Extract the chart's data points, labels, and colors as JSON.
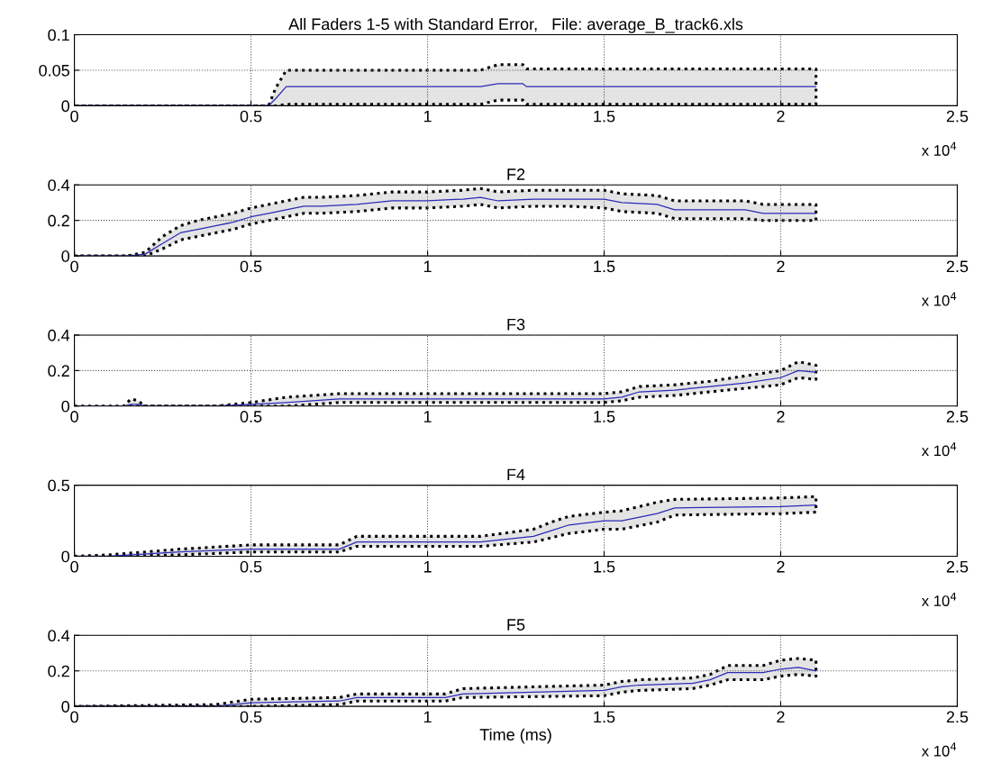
{
  "chart_data": [
    {
      "type": "line",
      "title": "All Faders 1-5 with Standard Error,   File: average_B_track6.xls",
      "xlim": [
        0,
        2.5
      ],
      "xticks": [
        0,
        0.5,
        1,
        1.5,
        2,
        2.5
      ],
      "ylim": [
        0,
        0.1
      ],
      "yticks": [
        0,
        0.05,
        0.1
      ],
      "grid": true,
      "annotations": [
        "x 10$^{4}$"
      ],
      "series": [
        {
          "color": "#2b2bb8",
          "x": [
            0,
            0.55,
            0.57,
            0.6,
            1.15,
            1.2,
            1.27,
            1.28,
            2.1
          ],
          "values": [
            0,
            0,
            0.01,
            0.027,
            0.027,
            0.031,
            0.031,
            0.027,
            0.027
          ],
          "upper": [
            0,
            0,
            0.025,
            0.05,
            0.05,
            0.058,
            0.058,
            0.052,
            0.052
          ],
          "lower": [
            0,
            0,
            0,
            0.002,
            0.002,
            0.008,
            0.008,
            0.002,
            0.002
          ]
        }
      ]
    },
    {
      "type": "line",
      "title": "F2",
      "xlim": [
        0,
        2.5
      ],
      "xticks": [
        0,
        0.5,
        1,
        1.5,
        2,
        2.5
      ],
      "ylim": [
        0,
        0.4
      ],
      "yticks": [
        0,
        0.2,
        0.4
      ],
      "grid": true,
      "annotations": [
        "x 10$^{4}$"
      ],
      "series": [
        {
          "color": "#2b2bb8",
          "x": [
            0,
            0.15,
            0.2,
            0.25,
            0.3,
            0.35,
            0.4,
            0.45,
            0.5,
            0.55,
            0.6,
            0.65,
            0.7,
            0.8,
            0.9,
            1,
            1.1,
            1.15,
            1.2,
            1.3,
            1.4,
            1.5,
            1.55,
            1.65,
            1.7,
            1.8,
            1.9,
            1.95,
            2,
            2.1
          ],
          "values": [
            0,
            0,
            0.01,
            0.07,
            0.13,
            0.15,
            0.17,
            0.19,
            0.22,
            0.24,
            0.26,
            0.28,
            0.28,
            0.29,
            0.31,
            0.31,
            0.32,
            0.33,
            0.31,
            0.32,
            0.32,
            0.32,
            0.3,
            0.29,
            0.26,
            0.26,
            0.26,
            0.24,
            0.24,
            0.24
          ],
          "upper": [
            0,
            0,
            0.02,
            0.11,
            0.17,
            0.2,
            0.22,
            0.24,
            0.27,
            0.29,
            0.31,
            0.33,
            0.33,
            0.34,
            0.36,
            0.36,
            0.37,
            0.38,
            0.36,
            0.37,
            0.37,
            0.37,
            0.35,
            0.34,
            0.31,
            0.31,
            0.31,
            0.29,
            0.29,
            0.29
          ],
          "lower": [
            0,
            0,
            0,
            0.04,
            0.09,
            0.11,
            0.13,
            0.15,
            0.18,
            0.2,
            0.22,
            0.24,
            0.24,
            0.25,
            0.27,
            0.27,
            0.28,
            0.29,
            0.27,
            0.28,
            0.28,
            0.27,
            0.25,
            0.24,
            0.21,
            0.21,
            0.21,
            0.2,
            0.2,
            0.2
          ]
        }
      ]
    },
    {
      "type": "line",
      "title": "F3",
      "xlim": [
        0,
        2.5
      ],
      "xticks": [
        0,
        0.5,
        1,
        1.5,
        2,
        2.5
      ],
      "ylim": [
        0,
        0.4
      ],
      "yticks": [
        0,
        0.2,
        0.4
      ],
      "grid": true,
      "annotations": [
        "x 10$^{4}$"
      ],
      "series": [
        {
          "color": "#2b2bb8",
          "x": [
            0,
            0.14,
            0.16,
            0.18,
            0.2,
            0.4,
            0.5,
            0.6,
            0.75,
            1,
            1.5,
            1.55,
            1.6,
            1.7,
            1.8,
            1.9,
            2,
            2.05,
            2.1
          ],
          "values": [
            0,
            0,
            0.01,
            0.01,
            0,
            0,
            0.01,
            0.02,
            0.04,
            0.04,
            0.04,
            0.05,
            0.08,
            0.09,
            0.11,
            0.13,
            0.16,
            0.2,
            0.19
          ],
          "upper": [
            0,
            0,
            0.04,
            0.03,
            0,
            0,
            0.02,
            0.05,
            0.07,
            0.07,
            0.07,
            0.08,
            0.11,
            0.12,
            0.14,
            0.17,
            0.2,
            0.25,
            0.23
          ],
          "lower": [
            0,
            0,
            0,
            0,
            0,
            0,
            0,
            0,
            0.02,
            0.02,
            0.02,
            0.03,
            0.05,
            0.06,
            0.08,
            0.1,
            0.12,
            0.16,
            0.15
          ]
        }
      ]
    },
    {
      "type": "line",
      "title": "F4",
      "xlim": [
        0,
        2.5
      ],
      "xticks": [
        0,
        0.5,
        1,
        1.5,
        2,
        2.5
      ],
      "ylim": [
        0,
        0.5
      ],
      "yticks": [
        0,
        0.5
      ],
      "grid": true,
      "annotations": [
        "x 10$^{4}$"
      ],
      "series": [
        {
          "color": "#2b2bb8",
          "x": [
            0,
            0.1,
            0.3,
            0.5,
            0.75,
            0.8,
            1,
            1.15,
            1.3,
            1.35,
            1.4,
            1.5,
            1.55,
            1.65,
            1.7,
            2,
            2.1
          ],
          "values": [
            0,
            0,
            0.03,
            0.05,
            0.05,
            0.1,
            0.1,
            0.1,
            0.14,
            0.18,
            0.22,
            0.25,
            0.25,
            0.3,
            0.34,
            0.35,
            0.36
          ],
          "upper": [
            0,
            0.01,
            0.05,
            0.08,
            0.08,
            0.14,
            0.14,
            0.14,
            0.19,
            0.24,
            0.28,
            0.31,
            0.32,
            0.38,
            0.4,
            0.41,
            0.42
          ],
          "lower": [
            0,
            0,
            0.01,
            0.03,
            0.03,
            0.07,
            0.07,
            0.07,
            0.1,
            0.13,
            0.16,
            0.19,
            0.19,
            0.24,
            0.29,
            0.3,
            0.31
          ]
        }
      ]
    },
    {
      "type": "line",
      "title": "F5",
      "xlabel": "Time (ms)",
      "xlim": [
        0,
        2.5
      ],
      "xticks": [
        0,
        0.5,
        1,
        1.5,
        2,
        2.5
      ],
      "ylim": [
        0,
        0.4
      ],
      "yticks": [
        0,
        0.2,
        0.4
      ],
      "grid": true,
      "annotations": [
        "x 10$^{4}$"
      ],
      "series": [
        {
          "color": "#2b2bb8",
          "x": [
            0,
            0.4,
            0.5,
            0.75,
            0.8,
            1,
            1.05,
            1.1,
            1.5,
            1.55,
            1.6,
            1.75,
            1.8,
            1.85,
            1.95,
            2,
            2.05,
            2.1
          ],
          "values": [
            0,
            0,
            0.02,
            0.03,
            0.05,
            0.05,
            0.05,
            0.07,
            0.09,
            0.11,
            0.12,
            0.13,
            0.15,
            0.19,
            0.19,
            0.21,
            0.22,
            0.2
          ],
          "upper": [
            0,
            0.01,
            0.04,
            0.05,
            0.07,
            0.07,
            0.07,
            0.1,
            0.12,
            0.14,
            0.15,
            0.16,
            0.18,
            0.23,
            0.23,
            0.26,
            0.27,
            0.26
          ],
          "lower": [
            0,
            0,
            0,
            0.01,
            0.03,
            0.03,
            0.03,
            0.05,
            0.06,
            0.08,
            0.09,
            0.1,
            0.12,
            0.15,
            0.15,
            0.17,
            0.18,
            0.17
          ]
        }
      ]
    }
  ]
}
